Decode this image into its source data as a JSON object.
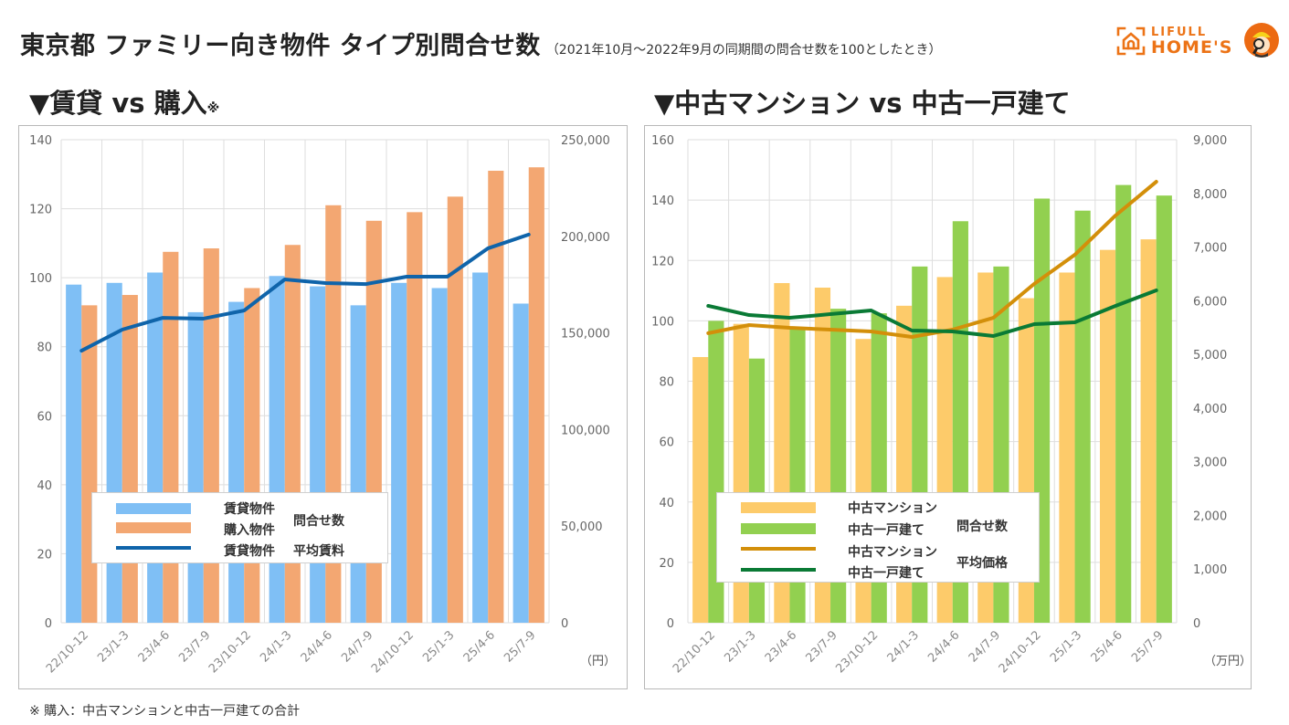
{
  "header": {
    "title": "東京都 ファミリー向き物件 タイプ別問合せ数",
    "subtitle": "（2021年10月～2022年9月の同期間の問合せ数を100としたとき）"
  },
  "logo": {
    "line1": "LIFULL",
    "line2": "HOME'S",
    "brand_color": "#ec7316"
  },
  "sections": {
    "left_title": "▼賃貸 vs 購入",
    "left_note": "※",
    "right_title": "▼中古マンション vs 中古一戸建て"
  },
  "footnote": "※ 購入：中古マンションと中古一戸建ての合計",
  "legends": {
    "left": {
      "items": [
        "賃貸物件",
        "購入物件",
        "賃貸物件"
      ],
      "group1": "問合せ数",
      "group2": "平均賃料"
    },
    "right": {
      "items": [
        "中古マンション",
        "中古一戸建て",
        "中古マンション",
        "中古一戸建て"
      ],
      "group1": "問合せ数",
      "group2": "平均価格"
    }
  },
  "chart_data": [
    {
      "type": "bar",
      "title": "賃貸 vs 購入",
      "categories": [
        "22/10-12",
        "23/1-3",
        "23/4-6",
        "23/7-9",
        "23/10-12",
        "24/1-3",
        "24/4-6",
        "24/7-9",
        "24/10-12",
        "25/1-3",
        "25/4-6",
        "25/7-9"
      ],
      "ylim": [
        0,
        140
      ],
      "yticks": [
        "0",
        "20",
        "40",
        "60",
        "80",
        "100",
        "120",
        "140"
      ],
      "y2lim": [
        0,
        250000
      ],
      "y2ticks": [
        "0",
        "50,000",
        "100,000",
        "150,000",
        "200,000",
        "250,000"
      ],
      "y2unit": "（円）",
      "grid": true,
      "legend_position": "bottom-left",
      "series": [
        {
          "name": "賃貸物件 問合せ数",
          "kind": "bar",
          "axis": "left",
          "color": "#7fbff5",
          "values": [
            98,
            98.5,
            101.5,
            90,
            93,
            100.5,
            97.5,
            92,
            98.5,
            97,
            101.5,
            92.5
          ]
        },
        {
          "name": "購入物件 問合せ数",
          "kind": "bar",
          "axis": "left",
          "color": "#f3a772",
          "values": [
            92,
            95,
            107.5,
            108.5,
            97,
            109.5,
            121,
            116.5,
            119,
            123.5,
            131,
            132
          ]
        },
        {
          "name": "賃貸物件 平均賃料",
          "kind": "line",
          "axis": "right",
          "color": "#0f64aa",
          "values": [
            140800,
            151700,
            157800,
            157400,
            161600,
            177700,
            175800,
            175300,
            179100,
            179100,
            193800,
            200900
          ]
        }
      ]
    },
    {
      "type": "bar",
      "title": "中古マンション vs 中古一戸建て",
      "categories": [
        "22/10-12",
        "23/1-3",
        "23/4-6",
        "23/7-9",
        "23/10-12",
        "24/1-3",
        "24/4-6",
        "24/7-9",
        "24/10-12",
        "25/1-3",
        "25/4-6",
        "25/7-9"
      ],
      "ylim": [
        0,
        160
      ],
      "yticks": [
        "0",
        "20",
        "40",
        "60",
        "80",
        "100",
        "120",
        "140",
        "160"
      ],
      "y2lim": [
        0,
        9000
      ],
      "y2ticks": [
        "0",
        "1,000",
        "2,000",
        "3,000",
        "4,000",
        "5,000",
        "6,000",
        "7,000",
        "8,000",
        "9,000"
      ],
      "y2unit": "（万円）",
      "grid": true,
      "legend_position": "bottom-left",
      "series": [
        {
          "name": "中古マンション 問合せ数",
          "kind": "bar",
          "axis": "left",
          "color": "#fdcb6a",
          "values": [
            88,
            99,
            112.5,
            111,
            94,
            105,
            114.5,
            116,
            107.5,
            116,
            123.5,
            127
          ]
        },
        {
          "name": "中古一戸建て 問合せ数",
          "kind": "bar",
          "axis": "left",
          "color": "#92d050",
          "values": [
            100,
            87.5,
            98,
            104,
            102.5,
            118,
            133,
            118,
            140.5,
            136.5,
            145,
            141.5
          ]
        },
        {
          "name": "中古マンション 平均価格",
          "kind": "line",
          "axis": "right",
          "color": "#d38f0a",
          "values": [
            5395,
            5546,
            5495,
            5461,
            5427,
            5325,
            5461,
            5682,
            6312,
            6856,
            7588,
            8217
          ]
        },
        {
          "name": "中古一戸建て 平均価格",
          "kind": "line",
          "axis": "right",
          "color": "#0a7a35",
          "values": [
            5904,
            5733,
            5682,
            5750,
            5818,
            5444,
            5427,
            5342,
            5563,
            5597,
            5904,
            6193
          ]
        }
      ]
    }
  ]
}
